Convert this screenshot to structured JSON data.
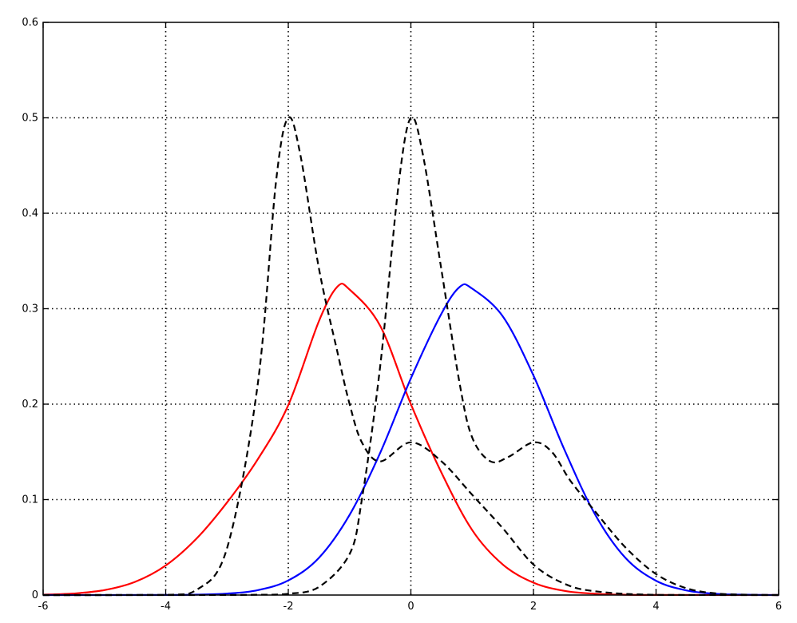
{
  "chart_data": {
    "type": "line",
    "title": "",
    "xlabel": "",
    "ylabel": "",
    "xlim": [
      -6,
      6
    ],
    "ylim": [
      0,
      0.6
    ],
    "x_ticks": [
      "-6",
      "-4",
      "-2",
      "0",
      "2",
      "4",
      "6"
    ],
    "y_ticks": [
      "0",
      "0.1",
      "0.2",
      "0.3",
      "0.4",
      "0.5",
      "0.6"
    ],
    "grid": true,
    "legend": "none",
    "series": [
      {
        "color": "#ff0000",
        "style": "solid",
        "points": [
          [
            -6,
            0.0004
          ],
          [
            -5.5,
            0.0016
          ],
          [
            -5,
            0.0052
          ],
          [
            -4.5,
            0.0138
          ],
          [
            -4,
            0.031
          ],
          [
            -3.5,
            0.059
          ],
          [
            -3,
            0.097
          ],
          [
            -2.5,
            0.142
          ],
          [
            -2,
            0.199
          ],
          [
            -1.5,
            0.287
          ],
          [
            -1.2,
            0.323
          ],
          [
            -1,
            0.32
          ],
          [
            -0.5,
            0.282
          ],
          [
            0,
            0.2
          ],
          [
            0.5,
            0.128
          ],
          [
            1,
            0.068
          ],
          [
            1.5,
            0.032
          ],
          [
            2,
            0.013
          ],
          [
            2.5,
            0.0044
          ],
          [
            3,
            0.0013
          ],
          [
            3.5,
            0.0003
          ],
          [
            4,
            0.0001
          ],
          [
            6,
            0
          ]
        ]
      },
      {
        "color": "#0000ff",
        "style": "solid",
        "points": [
          [
            -6,
            0
          ],
          [
            -4,
            0.0001
          ],
          [
            -3.5,
            0.0004
          ],
          [
            -3,
            0.0015
          ],
          [
            -2.5,
            0.0051
          ],
          [
            -2,
            0.0153
          ],
          [
            -1.5,
            0.039
          ],
          [
            -1,
            0.084
          ],
          [
            -0.5,
            0.149
          ],
          [
            0,
            0.227
          ],
          [
            0.5,
            0.295
          ],
          [
            0.8,
            0.323
          ],
          [
            1,
            0.321
          ],
          [
            1.5,
            0.292
          ],
          [
            2,
            0.23
          ],
          [
            2.5,
            0.153
          ],
          [
            3,
            0.085
          ],
          [
            3.5,
            0.039
          ],
          [
            4,
            0.015
          ],
          [
            4.5,
            0.0048
          ],
          [
            5,
            0.0012
          ],
          [
            5.5,
            0.0003
          ],
          [
            6,
            0
          ]
        ]
      },
      {
        "color": "#000000",
        "style": "dashed",
        "points": [
          [
            -6,
            0
          ],
          [
            -4,
            0.0002
          ],
          [
            -3.5,
            0.0051
          ],
          [
            -3,
            0.049
          ],
          [
            -2.5,
            0.22
          ],
          [
            -2.2,
            0.433
          ],
          [
            -2,
            0.5
          ],
          [
            -1.8,
            0.46
          ],
          [
            -1.5,
            0.342
          ],
          [
            -1.2,
            0.255
          ],
          [
            -1,
            0.2
          ],
          [
            -0.8,
            0.16
          ],
          [
            -0.5,
            0.14
          ],
          [
            0,
            0.16
          ],
          [
            0.5,
            0.14
          ],
          [
            1,
            0.105
          ],
          [
            1.5,
            0.07
          ],
          [
            2,
            0.032
          ],
          [
            2.5,
            0.012
          ],
          [
            3,
            0.004
          ],
          [
            4,
            0.0002
          ],
          [
            6,
            0
          ]
        ]
      },
      {
        "color": "#000000",
        "style": "dashed",
        "points": [
          [
            -6,
            0
          ],
          [
            -4,
            0
          ],
          [
            -3,
            0.0001
          ],
          [
            -2.5,
            0.0003
          ],
          [
            -2,
            0.0013
          ],
          [
            -1.5,
            0.0085
          ],
          [
            -1,
            0.043
          ],
          [
            -0.8,
            0.1
          ],
          [
            -0.5,
            0.24
          ],
          [
            -0.2,
            0.43
          ],
          [
            0,
            0.5
          ],
          [
            0.2,
            0.46
          ],
          [
            0.5,
            0.34
          ],
          [
            0.8,
            0.22
          ],
          [
            1,
            0.165
          ],
          [
            1.3,
            0.14
          ],
          [
            1.6,
            0.145
          ],
          [
            2,
            0.16
          ],
          [
            2.3,
            0.15
          ],
          [
            2.6,
            0.12
          ],
          [
            3,
            0.088
          ],
          [
            3.5,
            0.05
          ],
          [
            4,
            0.022
          ],
          [
            4.5,
            0.007
          ],
          [
            5,
            0.0016
          ],
          [
            5.5,
            0.0003
          ],
          [
            6,
            0
          ]
        ]
      }
    ]
  }
}
